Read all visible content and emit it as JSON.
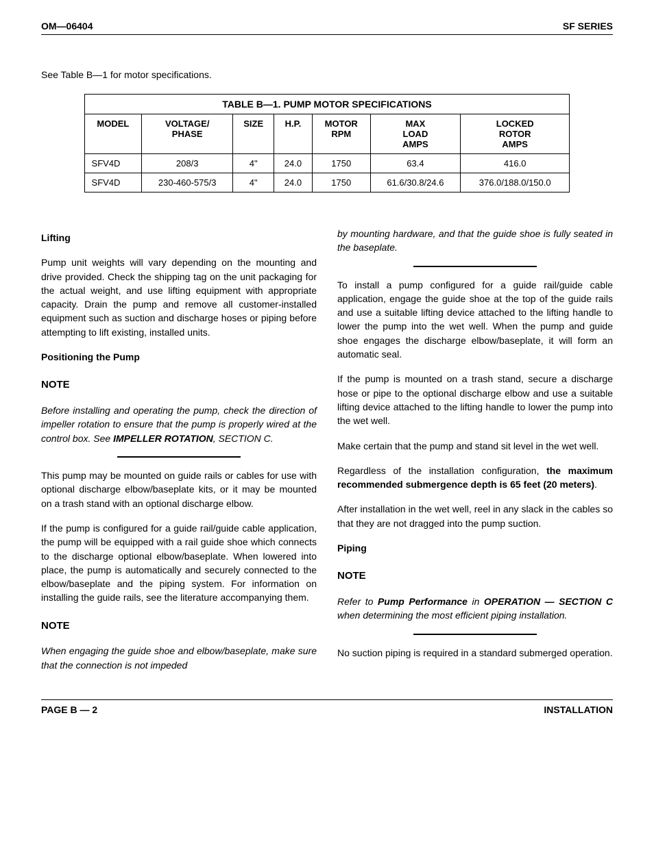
{
  "header": {
    "left": "OM—06404",
    "right": "SF SERIES"
  },
  "intro": "See Table B—1 for motor specifications.",
  "table": {
    "caption": "TABLE B—1.  PUMP MOTOR SPECIFICATIONS",
    "columns": [
      "MODEL",
      "VOLTAGE/\nPHASE",
      "SIZE",
      "H.P.",
      "MOTOR\nRPM",
      "MAX\nLOAD\nAMPS",
      "LOCKED\nROTOR\nAMPS"
    ],
    "rows": [
      [
        "SFV4D",
        "208/3",
        "4\"",
        "24.0",
        "1750",
        "63.4",
        "416.0"
      ],
      [
        "SFV4D",
        "230-460-575/3",
        "4\"",
        "24.0",
        "1750",
        "61.6/30.8/24.6",
        "376.0/188.0/150.0"
      ]
    ]
  },
  "left_col": {
    "lifting_heading": "Lifting",
    "lifting_p1": "Pump unit weights will vary depending on the mounting and drive provided. Check the shipping tag on the unit packaging for the actual weight, and use lifting equipment with appropriate capacity. Drain the pump and remove all customer-installed equipment such as suction and discharge hoses or piping before attempting to lift existing, installed units.",
    "positioning_heading": "Positioning the Pump",
    "note1_heading": "NOTE",
    "note1_body_pre": "Before installing and operating the pump, check the direction of impeller rotation to ensure that the pump is properly wired at the control box. See ",
    "note1_body_bold": "IMPELLER ROTATION",
    "note1_body_post": ", SECTION C.",
    "p2": "This pump may be mounted on guide rails or cables for use with optional discharge elbow/baseplate kits, or it may be mounted on a trash stand with an optional discharge elbow.",
    "p3": "If the pump is configured for a guide rail/guide cable application, the pump will be equipped with a rail guide shoe which connects to the discharge optional elbow/baseplate. When lowered into place, the pump is automatically and securely connected to the  elbow/baseplate and the piping system. For information on installing the guide rails, see the literature accompanying them.",
    "note2_heading": "NOTE",
    "note2_body": "When engaging the guide shoe and elbow/baseplate, make sure that the connection is not impeded"
  },
  "right_col": {
    "note2_cont": "by mounting hardware, and that the guide shoe is fully seated in the baseplate.",
    "p1": "To install a pump configured for a guide rail/guide cable application, engage the guide shoe at the top of the guide rails and use a suitable lifting device attached to the lifting handle to lower the pump into the wet well. When the pump and guide shoe engages the discharge elbow/baseplate, it will form an automatic seal.",
    "p2": "If the pump is mounted on a trash stand, secure a discharge hose or pipe to the optional discharge elbow and use a suitable lifting device attached to the lifting handle to lower the pump into the wet well.",
    "p3": "Make certain that the pump and stand sit level in the wet well.",
    "p4_pre": "Regardless of the installation configuration, ",
    "p4_bold": "the maximum recommended submergence depth is 65 feet (20 meters)",
    "p4_post": ".",
    "p5": "After installation in the wet well, reel in any slack in the cables so that they are not dragged into the pump suction.",
    "piping_heading": "Piping",
    "note3_heading": "NOTE",
    "note3_pre": "Refer to ",
    "note3_b1": "Pump Performance",
    "note3_mid": " in ",
    "note3_b2": "OPERATION — SECTION C",
    "note3_post": " when determining the most efficient piping installation.",
    "p6": "No suction piping is required in a standard submerged operation."
  },
  "footer": {
    "left": "PAGE B — 2",
    "right": "INSTALLATION"
  }
}
